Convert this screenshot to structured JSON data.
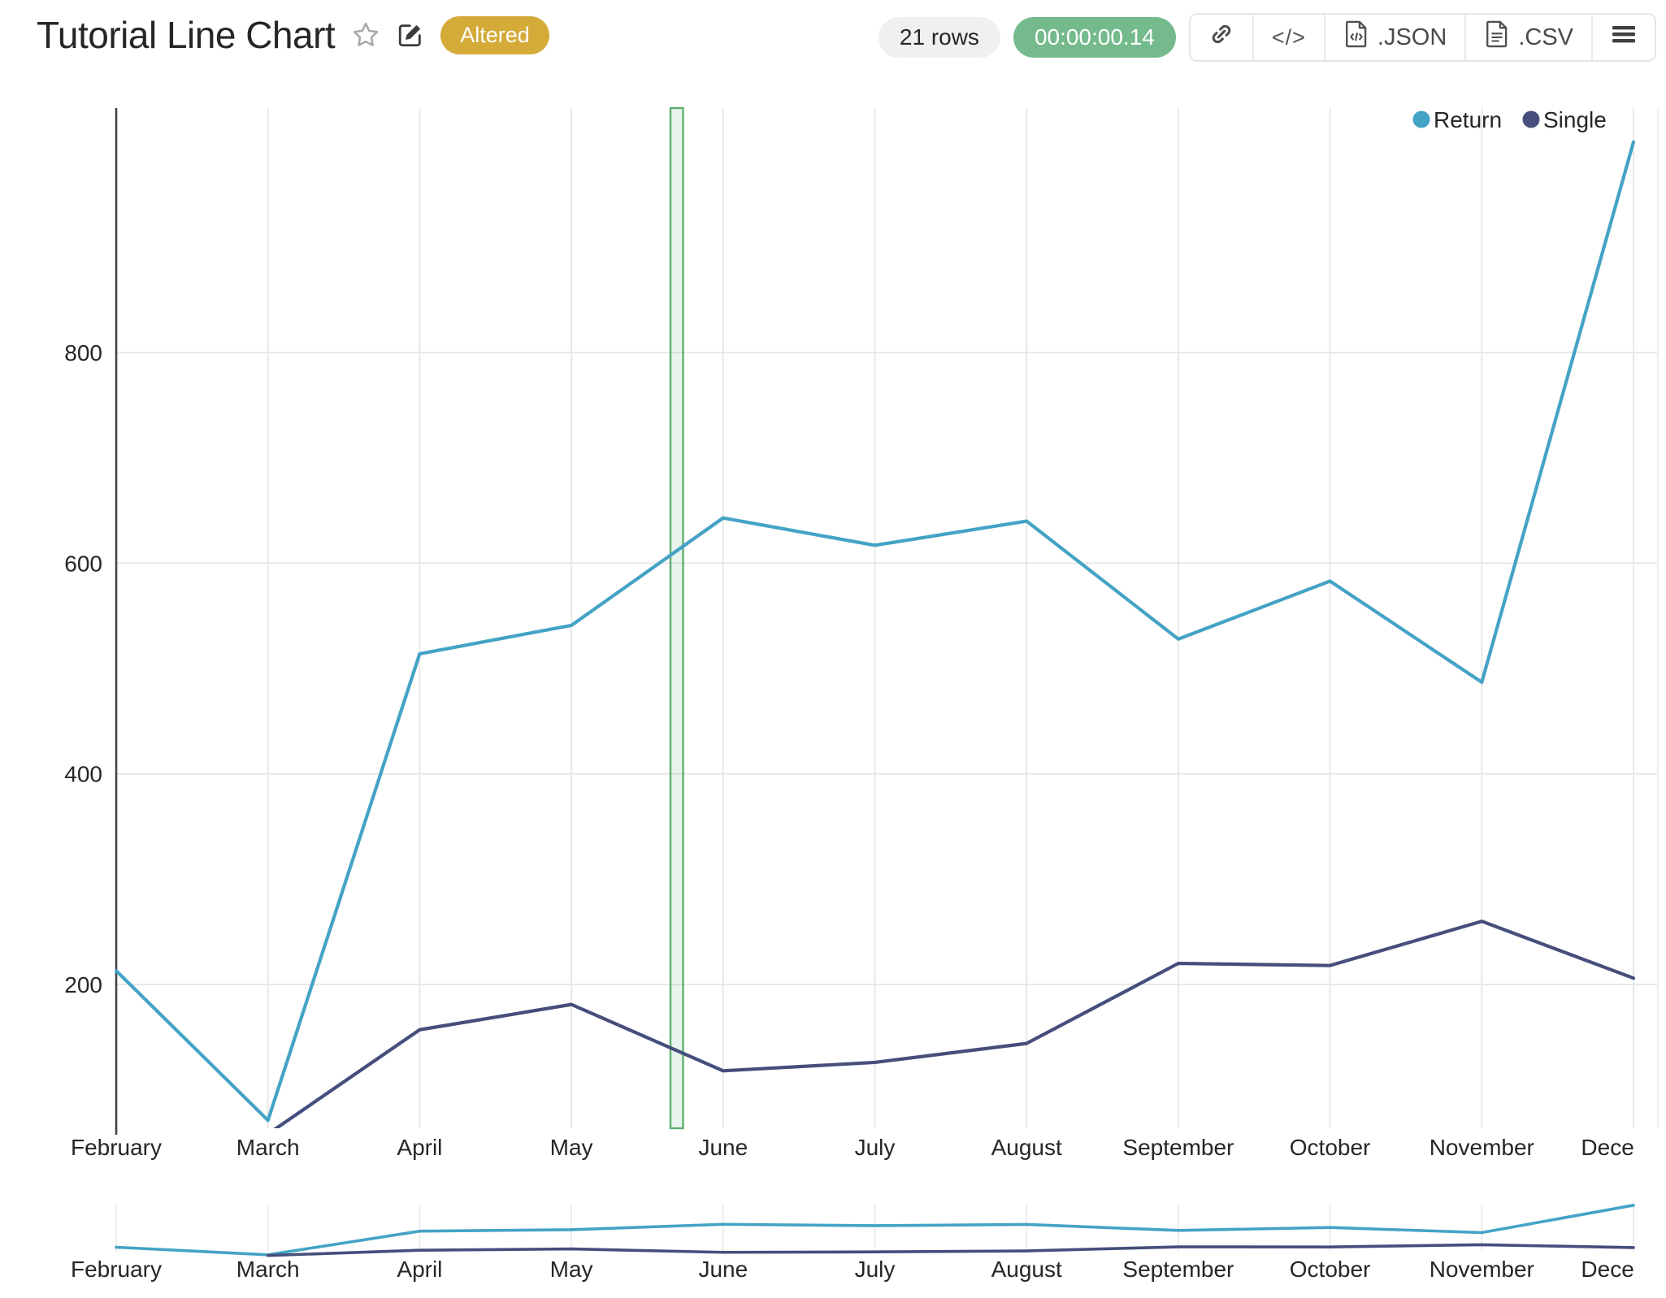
{
  "header": {
    "title": "Tutorial Line Chart",
    "status_badge": "Altered",
    "rows_badge": "21 rows",
    "duration_badge": "00:00:00.14",
    "buttons": {
      "code": "</>",
      "json": ".JSON",
      "csv": ".CSV"
    }
  },
  "colors": {
    "badge_altered": "#d4ab39",
    "badge_duration": "#74ba8c",
    "badge_rows_bg": "#f0f0f0",
    "series_return": "#44a3c5",
    "series_single": "#454e7c",
    "selection_fill": "rgba(102,187,125,0.15)",
    "selection_border": "#5fae72",
    "gridline": "#e8e8e8",
    "axis_line": "#434343",
    "tick_text": "#262626"
  },
  "chart_data": {
    "type": "line",
    "title": "Tutorial Line Chart",
    "categories": [
      "February",
      "March",
      "April",
      "May",
      "June",
      "July",
      "August",
      "September",
      "October",
      "November",
      "December"
    ],
    "series": [
      {
        "name": "Return",
        "color": "#44a3c5",
        "values": [
          213,
          71,
          514,
          541,
          643,
          617,
          640,
          528,
          583,
          487,
          1000
        ]
      },
      {
        "name": "Single",
        "color": "#454e7c",
        "values": [
          null,
          58,
          157,
          181,
          118,
          126,
          144,
          220,
          218,
          260,
          206
        ]
      }
    ],
    "xlabel": "",
    "ylabel": "",
    "y_ticks": [
      200,
      400,
      600,
      800
    ],
    "main_view_y_range": [
      63,
      1032
    ],
    "overview_y_range": [
      0,
      1060
    ],
    "grid": true,
    "legend_position": "top-right",
    "legend": [
      "Return",
      "Single"
    ],
    "selection_band": {
      "between_months": "May-June",
      "fraction_start": 0.653,
      "fraction_end": 0.736
    },
    "overview_axis_categories": [
      "February",
      "March",
      "April",
      "May",
      "June",
      "July",
      "August",
      "September",
      "October",
      "November",
      "December"
    ]
  }
}
